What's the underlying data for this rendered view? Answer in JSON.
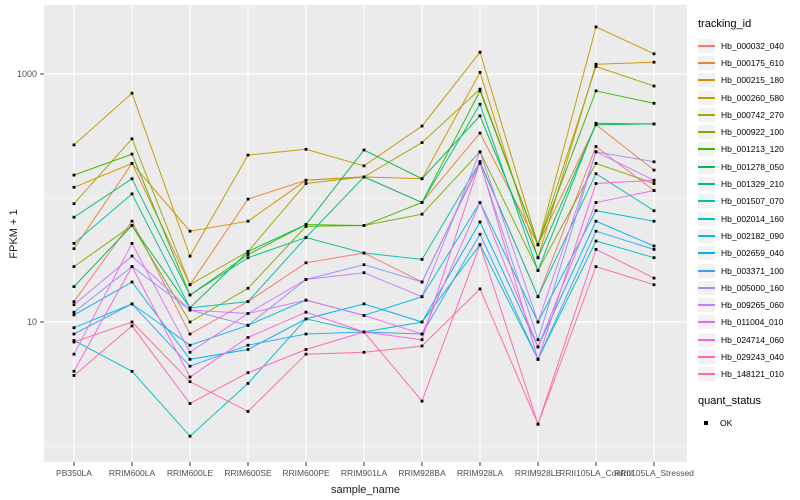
{
  "figure": {
    "background": "#ffffff",
    "panel_background": "#EBEBEB",
    "gridline_color": "#ffffff",
    "tick_label_color": "#4d4d4d",
    "axis_title_color": "#1a1a1a"
  },
  "legend": {
    "tracking_title": "tracking_id",
    "quant_title": "quant_status",
    "quant_value": "OK",
    "quant_marker": "black-square"
  },
  "chart_data": {
    "type": "line",
    "title": "",
    "xlabel": "sample_name",
    "ylabel": "FPKM + 1",
    "y_scale": "log10",
    "y_ticks": [
      10,
      1000
    ],
    "y_minor": [
      1,
      100
    ],
    "ylim": [
      0.9,
      3000
    ],
    "grid": true,
    "legend_position": "right",
    "point_shape": "square",
    "point_color": "#000000",
    "categories": [
      "PB350LA",
      "RRIM600LA",
      "RRIM600LE",
      "RRIM600SE",
      "RRIM600PE",
      "RRIM901LA",
      "RRIM928BA",
      "RRIM928LA",
      "RRIM928LE",
      "RRII105LA_Control",
      "RRII105LA_Stressed"
    ],
    "series": [
      {
        "name": "Hb_000032_040",
        "color": "#F8766D",
        "values": [
          14.6,
          65,
          8.0,
          14.6,
          30,
          36,
          21,
          196,
          16,
          260,
          115
        ]
      },
      {
        "name": "Hb_000175_610",
        "color": "#EA8331",
        "values": [
          39,
          190,
          20,
          98,
          139,
          148,
          92,
          334,
          42,
          390,
          168
        ]
      },
      {
        "name": "Hb_000215_180",
        "color": "#D89000",
        "values": [
          122,
          190,
          54,
          65,
          139,
          148,
          143,
          1030,
          33,
          1200,
          1245
        ]
      },
      {
        "name": "Hb_000260_580",
        "color": "#C09B00",
        "values": [
          268,
          700,
          34,
          222,
          247,
          182,
          380,
          1500,
          42,
          2400,
          1455
        ]
      },
      {
        "name": "Hb_000742_270",
        "color": "#A3A500",
        "values": [
          90,
          300,
          20,
          37,
          131,
          148,
          280,
          755,
          42,
          1150,
          800
        ]
      },
      {
        "name": "Hb_000922_100",
        "color": "#7CAE00",
        "values": [
          28,
          60,
          10,
          18.7,
          59,
          60,
          74,
          236,
          26,
          190,
          131
        ]
      },
      {
        "name": "Hb_001213_120",
        "color": "#39B600",
        "values": [
          153,
          226,
          16.5,
          35,
          61,
          60,
          92,
          730,
          42,
          730,
          580
        ]
      },
      {
        "name": "Hb_001278_050",
        "color": "#00BB4E",
        "values": [
          19.3,
          60,
          13,
          37,
          61,
          244,
          143,
          460,
          33,
          390,
          396
        ]
      },
      {
        "name": "Hb_001329_210",
        "color": "#00BF7D",
        "values": [
          70,
          143,
          16.5,
          33,
          48,
          148,
          92,
          570,
          26,
          400,
          396
        ]
      },
      {
        "name": "Hb_001507_070",
        "color": "#00C1A3",
        "values": [
          43,
          108,
          13,
          14.6,
          48,
          36,
          32,
          196,
          16,
          157,
          79
        ]
      },
      {
        "name": "Hb_002014_160",
        "color": "#00BFC4",
        "values": [
          7.1,
          4.0,
          1.2,
          3.2,
          10.6,
          8.3,
          10,
          42,
          5.0,
          45,
          33
        ]
      },
      {
        "name": "Hb_002182_090",
        "color": "#00BAE0",
        "values": [
          9.0,
          14,
          6.5,
          9.4,
          15,
          11.3,
          16,
          92,
          10,
          79,
          65
        ]
      },
      {
        "name": "Hb_002659_040",
        "color": "#00B0F6",
        "values": [
          11.4,
          21,
          5.0,
          6.0,
          10.6,
          14,
          10,
          64,
          6.3,
          65,
          41
        ]
      },
      {
        "name": "Hb_003371_100",
        "color": "#35A2FF",
        "values": [
          8.0,
          14,
          4.4,
          6.5,
          8.0,
          8.3,
          8.0,
          51,
          5.0,
          54,
          38.5
        ]
      },
      {
        "name": "Hb_005000_160",
        "color": "#9590FF",
        "values": [
          12,
          28,
          12.5,
          9.4,
          22,
          29,
          21,
          190,
          7.2,
          236,
          196
        ]
      },
      {
        "name": "Hb_009265_060",
        "color": "#C77CFF",
        "values": [
          13.8,
          34,
          12.5,
          11.7,
          22,
          25,
          16,
          236,
          10,
          236,
          139
        ]
      },
      {
        "name": "Hb_011004_010",
        "color": "#E76BF3",
        "values": [
          5.5,
          43,
          5.7,
          11.7,
          15,
          11.3,
          8.0,
          92,
          6.3,
          92,
          115
        ]
      },
      {
        "name": "Hb_024714_060",
        "color": "#FA62DB",
        "values": [
          4.0,
          28,
          3.6,
          7.5,
          12,
          8.3,
          7.2,
          196,
          5.0,
          131,
          139
        ]
      },
      {
        "name": "Hb_029243_040",
        "color": "#FF62BC",
        "values": [
          3.7,
          9.3,
          2.2,
          3.9,
          6.0,
          8.3,
          2.3,
          42,
          1.5,
          38.5,
          22.6
        ]
      },
      {
        "name": "Hb_148121_010",
        "color": "#FF6A98",
        "values": [
          6.9,
          10,
          3.3,
          1.9,
          5.5,
          5.7,
          6.4,
          18.5,
          1.5,
          28,
          20
        ]
      }
    ]
  }
}
